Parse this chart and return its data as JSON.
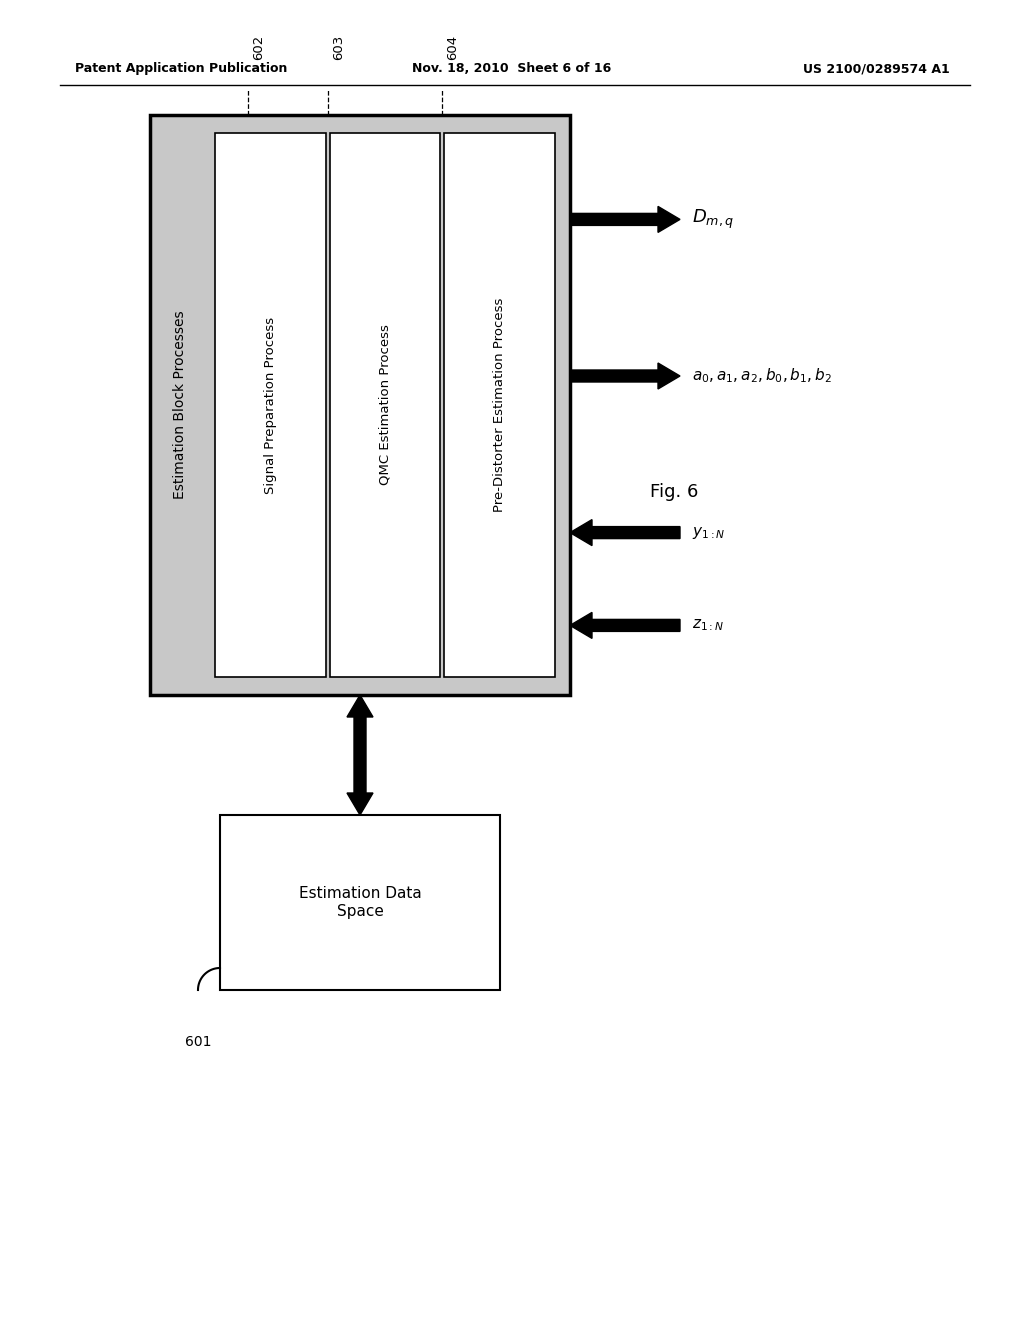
{
  "bg_color": "#ffffff",
  "header_left": "Patent Application Publication",
  "header_center": "Nov. 18, 2010  Sheet 6 of 16",
  "header_right": "US 2100/0289574 A1",
  "fig_label": "Fig. 6",
  "ref_601": "601",
  "ref_602": "602",
  "ref_603": "603",
  "ref_604": "604",
  "outer_box_label": "Estimation Block Processes",
  "inner_box1_label": "Signal Preparation Process",
  "inner_box2_label": "QMC Estimation Process",
  "inner_box3_label": "Pre-Distorter Estimation Process",
  "lower_box_label": "Estimation Data\nSpace",
  "outer_box_color": "#cccccc",
  "inner_box_color": "#ffffff",
  "lower_box_color": "#ffffff"
}
